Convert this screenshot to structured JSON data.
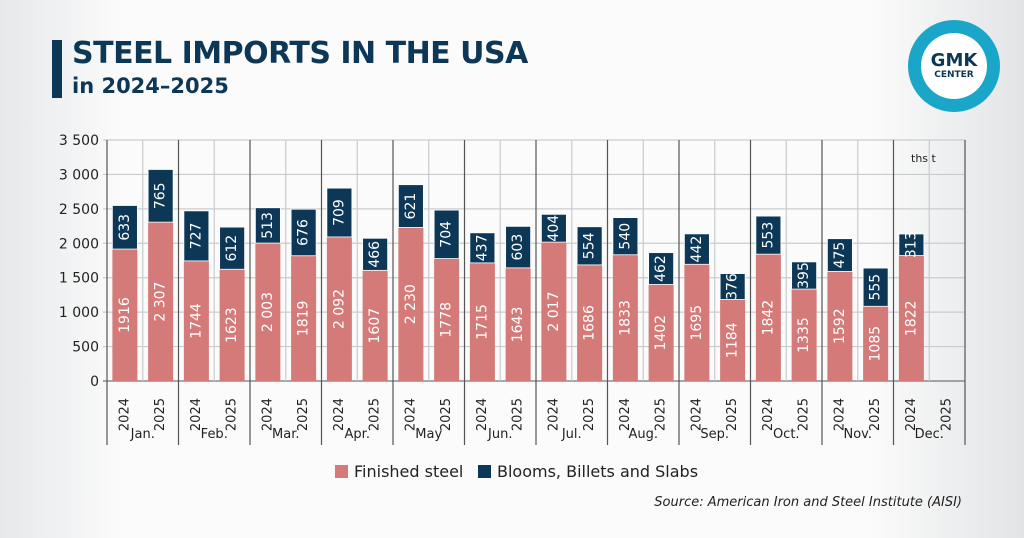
{
  "header": {
    "title": "STEEL IMPORTS IN THE USA",
    "subtitle": "in 2024–2025"
  },
  "logo": {
    "text_top": "GMK",
    "text_bottom": "CENTER"
  },
  "source": "Source: American Iron and Steel Institute (AISI)",
  "chart_data": {
    "type": "bar",
    "stacked": true,
    "unit": "ths t",
    "ylim": [
      0,
      3500
    ],
    "yticks": [
      "0",
      "500",
      "1 000",
      "1 500",
      "2 000",
      "2 500",
      "3 000",
      "3 500"
    ],
    "ytick_values": [
      0,
      500,
      1000,
      1500,
      2000,
      2500,
      3000,
      3500
    ],
    "grid": true,
    "legend": "bottom",
    "months": [
      "Jan.",
      "Feb.",
      "Mar.",
      "Apr.",
      "May",
      "Jun.",
      "Jul.",
      "Aug.",
      "Sep.",
      "Oct.",
      "Nov.",
      "Dec."
    ],
    "years": [
      "2024",
      "2025"
    ],
    "colors": {
      "Finished steel": "#d47b7a",
      "Blooms, Billets and Slabs": "#0d3756"
    },
    "series": [
      {
        "name": "Finished steel",
        "values_2024": [
          1916,
          1744,
          2003,
          2092,
          2230,
          1715,
          2017,
          1833,
          1695,
          1842,
          1592,
          1822
        ],
        "values_2025": [
          2307,
          1623,
          1819,
          1607,
          1778,
          1643,
          1686,
          1402,
          1184,
          1335,
          1085,
          null
        ],
        "labels_2024": [
          "1916",
          "1744",
          "2 003",
          "2 092",
          "2 230",
          "1715",
          "2 017",
          "1833",
          "1695",
          "1842",
          "1592",
          "1822"
        ],
        "labels_2025": [
          "2 307",
          "1623",
          "1819",
          "1607",
          "1778",
          "1643",
          "1686",
          "1402",
          "1184",
          "1335",
          "1085",
          null
        ]
      },
      {
        "name": "Blooms, Billets and Slabs",
        "values_2024": [
          633,
          727,
          513,
          709,
          621,
          437,
          404,
          540,
          442,
          553,
          475,
          313
        ],
        "values_2025": [
          765,
          612,
          676,
          466,
          704,
          603,
          554,
          462,
          376,
          395,
          555,
          null
        ]
      }
    ]
  }
}
